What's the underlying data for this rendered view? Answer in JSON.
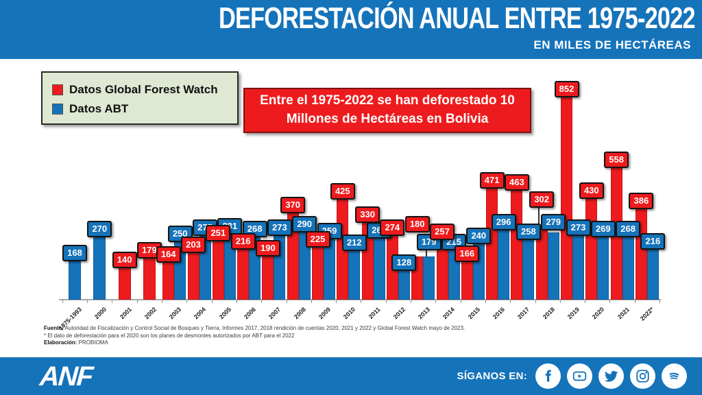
{
  "colors": {
    "blue": "#1573ba",
    "red": "#ee1b1e",
    "legend_bg": "#dfe8d2"
  },
  "header": {
    "title": "DEFORESTACIÓN ANUAL ENTRE 1975-2022",
    "subtitle": "EN MILES DE HECTÁREAS"
  },
  "legend": {
    "items": [
      {
        "label": "Datos Global Forest Watch",
        "color": "#ee1b1e"
      },
      {
        "label": "Datos ABT",
        "color": "#1573ba"
      }
    ]
  },
  "callout": {
    "text": "Entre el 1975-2022 se han deforestado 10 Millones de Hectáreas en Bolivia"
  },
  "chart_data": {
    "type": "bar",
    "title": "Deforestación anual entre 1975-2022 (miles de hectáreas)",
    "categories": [
      "1975-1993",
      "2000",
      "2001",
      "2002",
      "2003",
      "2004",
      "2005",
      "2006",
      "2007",
      "2008",
      "2009",
      "2010",
      "2011",
      "2012",
      "2013",
      "2014",
      "2015",
      "2016",
      "2017",
      "2018",
      "2019",
      "2020",
      "2021",
      "2022*"
    ],
    "series": [
      {
        "name": "Datos Global Forest Watch",
        "color": "#ee1b1e",
        "values": [
          null,
          null,
          140,
          179,
          164,
          203,
          251,
          216,
          190,
          370,
          225,
          425,
          330,
          274,
          180,
          257,
          166,
          471,
          463,
          302,
          852,
          430,
          558,
          386
        ]
      },
      {
        "name": "Datos ABT",
        "color": "#1573ba",
        "values": [
          168,
          270,
          null,
          null,
          250,
          275,
          281,
          268,
          273,
          290,
          259,
          212,
          262,
          128,
          179,
          215,
          240,
          296,
          258,
          279,
          273,
          269,
          268,
          216
        ]
      }
    ],
    "xlabel": "",
    "ylabel": "miles de hectáreas",
    "ylim": [
      0,
      900
    ],
    "grid": false,
    "legend_position": "top-left",
    "data_labels": true,
    "label_offsets": {
      "2013": {
        "gfw": -38,
        "abt": -12,
        "leader": "abt"
      },
      "2018": {
        "gfw": -31,
        "abt": -6,
        "leader": "gfw"
      }
    }
  },
  "footnotes": {
    "line1_label": "Fuente:",
    "line1_text": " Autoridad de Fiscalización y Control Social de Bosques y Tierra, Informes 2017, 2018  rendición de cuentas 2020, 2021 y 2022  y Global Forest Watch mayo de 2023.",
    "line2_text": "* El dato de deforestación para el 2020 son los planes de desmontes autorizados por ABT para el 2022",
    "line3_label": "Elaboración:",
    "line3_text": " PROBIOMA"
  },
  "footer_bar": {
    "logo": "ANF",
    "follow_label": "SÍGANOS EN:",
    "social": [
      "facebook-icon",
      "youtube-icon",
      "twitter-icon",
      "instagram-icon",
      "spotify-icon"
    ]
  }
}
